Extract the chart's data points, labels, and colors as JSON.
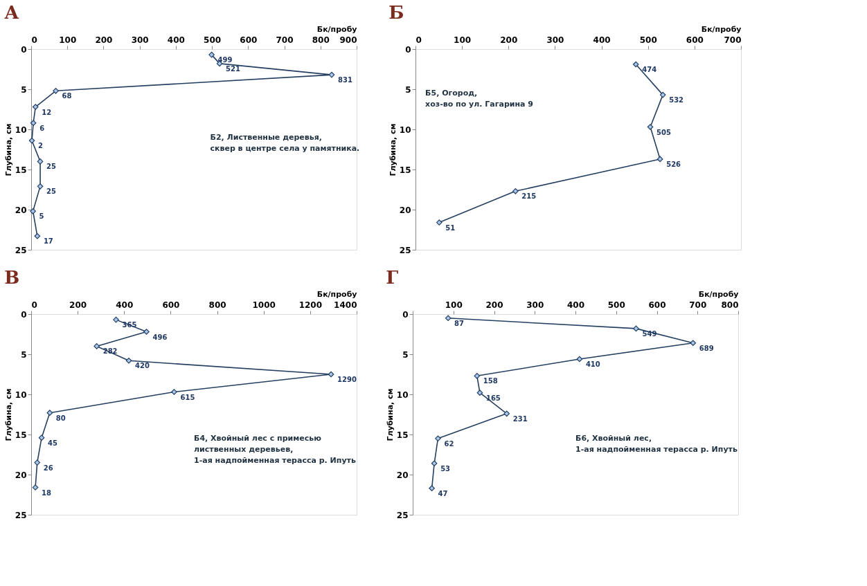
{
  "chart_data": [
    {
      "type": "line",
      "orientation": "horizontal",
      "title": "А",
      "xlabel": "Бк/пробу",
      "ylabel": "Глубина, см",
      "xlim": [
        0,
        900
      ],
      "xticks": [
        0,
        100,
        200,
        300,
        400,
        500,
        600,
        700,
        800,
        900
      ],
      "ylim": [
        25,
        0
      ],
      "yticks": [
        0,
        5,
        10,
        15,
        20,
        25
      ],
      "grid": false,
      "marker": "diamond",
      "line_style": "solid",
      "annotations": [
        "Б2,          Лиственные деревья,\nсквер в центре села у памятника."
      ],
      "series": [
        {
          "color": "#243f60",
          "x": [
            0.7,
            1.8,
            3.2,
            5.2,
            7.2,
            9.2,
            11.4,
            14.0,
            17.1,
            20.2,
            23.3
          ],
          "values": [
            499,
            521,
            831,
            68,
            12,
            6,
            2,
            25,
            25,
            5,
            17
          ]
        }
      ],
      "data_labels": true
    },
    {
      "type": "line",
      "orientation": "horizontal",
      "title": "Б",
      "xlabel": "Бк/пробу",
      "ylabel": "Глубина, см",
      "xlim": [
        0,
        700
      ],
      "xticks": [
        0,
        100,
        200,
        300,
        400,
        500,
        600,
        700
      ],
      "ylim": [
        25,
        0
      ],
      "yticks": [
        0,
        5,
        10,
        15,
        20,
        25
      ],
      "grid": false,
      "marker": "diamond",
      "line_style": "solid",
      "annotations": [
        "Б5,          Огород,\nхоз-во по ул. Гагарина 9"
      ],
      "series": [
        {
          "color": "#243f60",
          "x": [
            1.9,
            5.7,
            9.7,
            13.7,
            17.7,
            21.6
          ],
          "values": [
            474,
            532,
            505,
            526,
            215,
            51
          ]
        }
      ],
      "data_labels": true
    },
    {
      "type": "line",
      "orientation": "horizontal",
      "title": "В",
      "xlabel": "Бк/пробу",
      "ylabel": "Глубина, см",
      "xlim": [
        0,
        1400
      ],
      "xticks": [
        0,
        200,
        400,
        600,
        800,
        1000,
        1200,
        1400
      ],
      "ylim": [
        25,
        0
      ],
      "yticks": [
        0,
        5,
        10,
        15,
        20,
        25
      ],
      "grid": false,
      "marker": "diamond",
      "line_style": "solid",
      "annotations": [
        "Б4,          Хвойный лес с примесью\nлиственных деревьев,\n1-ая надпойменная терасса р. Ипуть"
      ],
      "series": [
        {
          "color": "#243f60",
          "x": [
            0.7,
            2.2,
            4.0,
            5.8,
            7.5,
            9.7,
            12.3,
            15.4,
            18.5,
            21.6
          ],
          "values": [
            365,
            496,
            282,
            420,
            1290,
            615,
            80,
            45,
            26,
            18
          ]
        }
      ],
      "data_labels": true
    },
    {
      "type": "line",
      "orientation": "horizontal",
      "title": "Г",
      "xlabel": "Бк/пробу",
      "ylabel": "Глубина, см",
      "xlim": [
        0,
        800
      ],
      "xticks": [
        {
          "value": 0,
          "label": null
        },
        100,
        200,
        300,
        400,
        500,
        600,
        700,
        800
      ],
      "ylim": [
        25,
        0
      ],
      "yticks": [
        0,
        5,
        10,
        15,
        20,
        25
      ],
      "grid": false,
      "marker": "diamond",
      "line_style": "solid",
      "annotations": [
        "Б6,          Хвойный лес,\n1-ая надпойменная терасса р. Ипуть"
      ],
      "series": [
        {
          "color": "#243f60",
          "x": [
            0.5,
            1.8,
            3.6,
            5.6,
            7.7,
            9.8,
            12.4,
            15.5,
            18.6,
            21.7
          ],
          "values": [
            87,
            549,
            689,
            410,
            158,
            165,
            231,
            62,
            53,
            47
          ]
        }
      ],
      "data_labels": true
    }
  ]
}
